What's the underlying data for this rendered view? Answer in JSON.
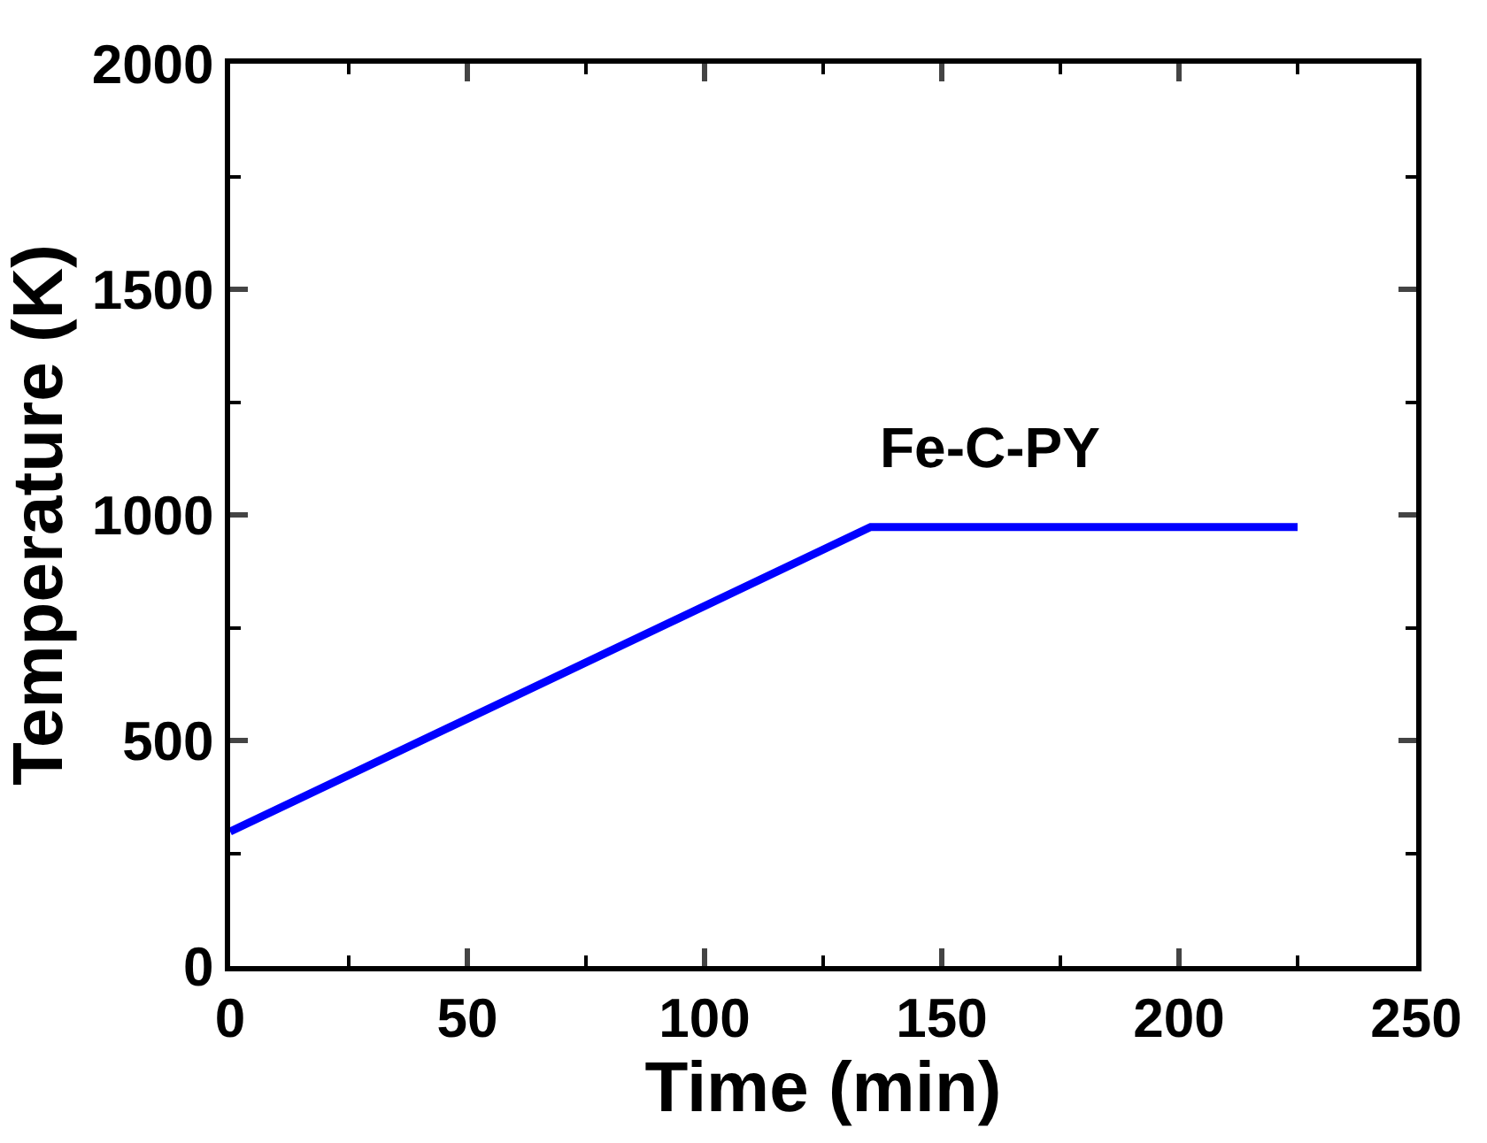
{
  "chart_data": {
    "type": "line",
    "xlabel": "Time (min)",
    "ylabel": "Temperature (K)",
    "xlim": [
      0,
      250
    ],
    "ylim": [
      0,
      2000
    ],
    "xticks": [
      0,
      50,
      100,
      150,
      200,
      250
    ],
    "yticks": [
      0,
      500,
      1000,
      1500,
      2000
    ],
    "legend": false,
    "marker": "none",
    "line_style": "solid",
    "series": [
      {
        "name": "Fe-C-PY",
        "color": "#0000ff",
        "x": [
          0,
          135,
          225
        ],
        "values": [
          298,
          973,
          973
        ]
      }
    ]
  }
}
